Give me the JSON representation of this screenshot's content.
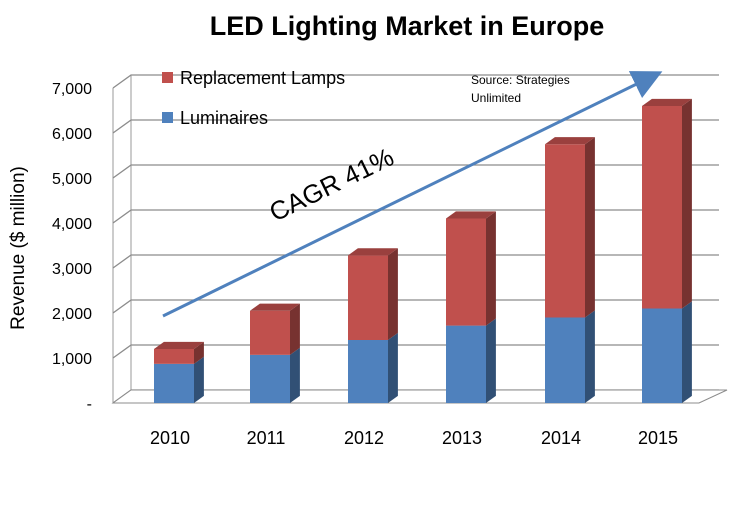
{
  "chart_data": {
    "type": "bar",
    "stacked": true,
    "title": "LED Lighting Market in Europe",
    "xlabel": "",
    "ylabel": "Revenue ($ million)",
    "categories": [
      "2010",
      "2011",
      "2012",
      "2013",
      "2014",
      "2015"
    ],
    "series": [
      {
        "name": "Luminaires",
        "color": "#4f81bd",
        "values": [
          870,
          1070,
          1400,
          1720,
          1900,
          2100
        ]
      },
      {
        "name": "Replacement Lamps",
        "color": "#c0504d",
        "values": [
          330,
          980,
          1880,
          2380,
          3850,
          4500
        ]
      }
    ],
    "ylim": [
      0,
      7000
    ],
    "yticks": [
      0,
      1000,
      2000,
      3000,
      4000,
      5000,
      6000,
      7000
    ],
    "ytick_labels": [
      "-",
      "1,000",
      "2,000",
      "3,000",
      "4,000",
      "5,000",
      "6,000",
      "7,000"
    ],
    "grid": true,
    "legend": {
      "placement": "top-left",
      "entries": [
        "Replacement Lamps",
        "Luminaires"
      ]
    },
    "annotations": {
      "source_line1": "Source: Strategies",
      "source_line2": "Unlimited",
      "cagr": "CAGR 41%"
    }
  }
}
